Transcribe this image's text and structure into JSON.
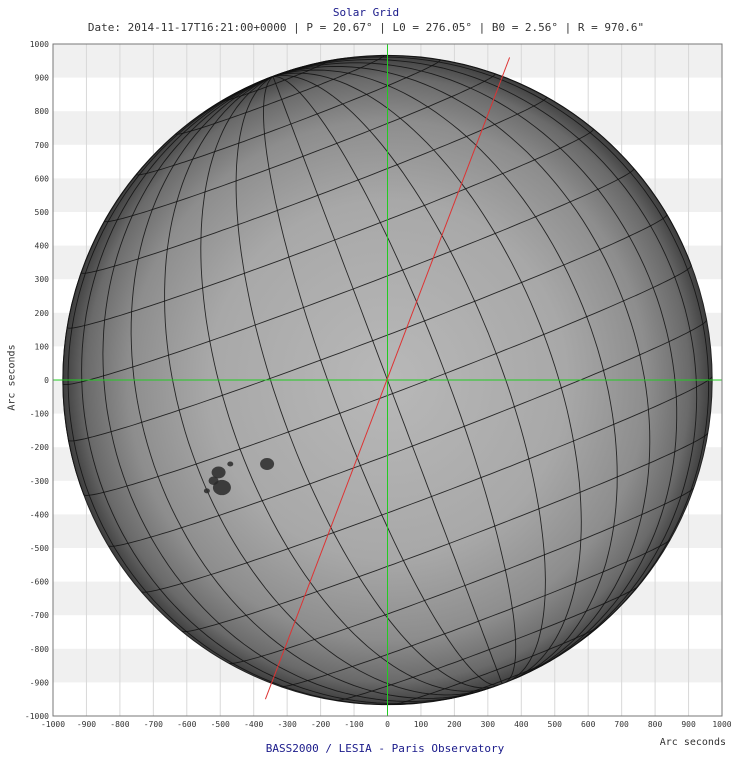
{
  "title": "Solar Grid",
  "subtitle": "Date: 2014-11-17T16:21:00+0000 | P = 20.67° | L0 = 276.05° | B0 = 2.56° | R = 970.6\"",
  "credit": "BASS2000 / LESIA - Paris Observatory",
  "axis": {
    "xlabel": "Arc seconds",
    "ylabel": "Arc seconds",
    "xlim": [
      -1000,
      1000
    ],
    "ylim": [
      -1000,
      1000
    ],
    "xticks": [
      "-1000",
      "-900",
      "-800",
      "-700",
      "-600",
      "-500",
      "-400",
      "-300",
      "-200",
      "-100",
      "0",
      "100",
      "200",
      "300",
      "400",
      "500",
      "600",
      "700",
      "800",
      "900",
      "1000"
    ],
    "yticks": [
      "1000",
      "900",
      "800",
      "700",
      "600",
      "500",
      "400",
      "300",
      "200",
      "100",
      "0",
      "-100",
      "-200",
      "-300",
      "-400",
      "-500",
      "-600",
      "-700",
      "-800",
      "-900",
      "-1000"
    ]
  },
  "colors": {
    "axis": "#22cc22",
    "rotation_axis": "#dd3333",
    "grid": "#111111"
  }
}
